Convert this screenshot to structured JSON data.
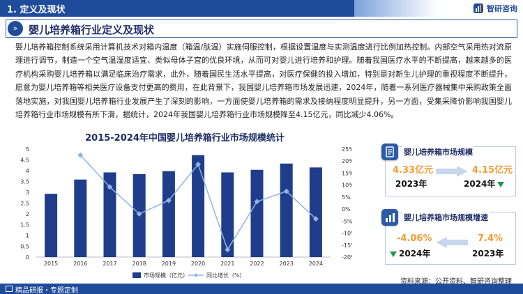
{
  "header": {
    "section_title": "1. 定义及现状",
    "logo_text": "智研咨询"
  },
  "main_title": "婴儿培养箱行业定义及现状",
  "paragraph": "婴儿培养箱控制系统采用计算机技术对箱内温度（箱温/肤温）实施伺服控制，根据设置温度与实测温度进行比例加热控制。内部空气采用热对流原理进行调节，制造一个空气温湿度适宜、类似母体子宫的优良环境，从而可对婴儿进行培养和护理。随着我国医疗水平的不断提高，越来越多的医疗机构采购婴儿培养箱以满足临床治疗需求，此外，随着国民生活水平提高，对医疗保健的投入增加，特别是对新生儿护理的重视程度不断提升，愿意为婴儿培养箱等相关医疗设备支付更高的费用，在此背景下，我国婴儿培养箱市场发展迅速，2024年，随着一系列医疗器械集中采购政策全面落地实施，对我国婴儿培养箱行业发展产生了深刻的影响，一方面使婴儿培养箱的需求及接纳程度明显提升，另一方面，受集采降价影响我国婴儿培养箱行业市场规模有所下滑，据统计，2024年我国婴儿培养箱行业市场规模降至4.15亿元，同比减少4.06%。",
  "chart_data": {
    "type": "bar",
    "title": "2015-2024年中国婴儿培养箱行业市场规模统计",
    "categories": [
      "2015",
      "2016",
      "2017",
      "2018",
      "2019",
      "2020",
      "2021",
      "2022",
      "2023",
      "2024"
    ],
    "series": [
      {
        "name": "市场规模（亿元）",
        "type": "bar",
        "axis": "left",
        "values": [
          2.93,
          3.59,
          3.92,
          3.84,
          3.98,
          4.72,
          3.92,
          4.04,
          4.33,
          4.15
        ]
      },
      {
        "name": "同比增长（%）",
        "type": "line",
        "axis": "right",
        "values": [
          null,
          22.5,
          9.2,
          -2.0,
          3.6,
          18.6,
          -16.9,
          3.1,
          7.4,
          -4.06
        ]
      }
    ],
    "y_left": {
      "min": 0,
      "max": 5,
      "ticks": [
        "0",
        "0.5",
        "1",
        "1.5",
        "2",
        "2.5",
        "3",
        "3.5",
        "4",
        "4.5",
        "5"
      ]
    },
    "y_right": {
      "min": -20,
      "max": 25,
      "ticks": [
        "-20%",
        "-15%",
        "-10%",
        "-5%",
        "0%",
        "5%",
        "10%",
        "15%",
        "20%",
        "25%"
      ]
    },
    "legend_position": "bottom",
    "grid": false,
    "colors": {
      "bar": "#1f3d8a",
      "line": "#8fb3e3"
    }
  },
  "cards": {
    "market_size": {
      "title": "婴儿培养箱市场规模",
      "prev_value": "4.33亿元",
      "prev_year": "2023年",
      "curr_value": "4.15亿元",
      "curr_year": "2024年"
    },
    "growth": {
      "title": "婴儿培养箱市场规模增速",
      "curr_value": "-4.06%",
      "curr_year": "2024年",
      "prev_value": "7.4%",
      "prev_year": "2023年"
    }
  },
  "source": "资料来源：公开资料、智研咨询整理",
  "footer": "精品研报・专题定制"
}
